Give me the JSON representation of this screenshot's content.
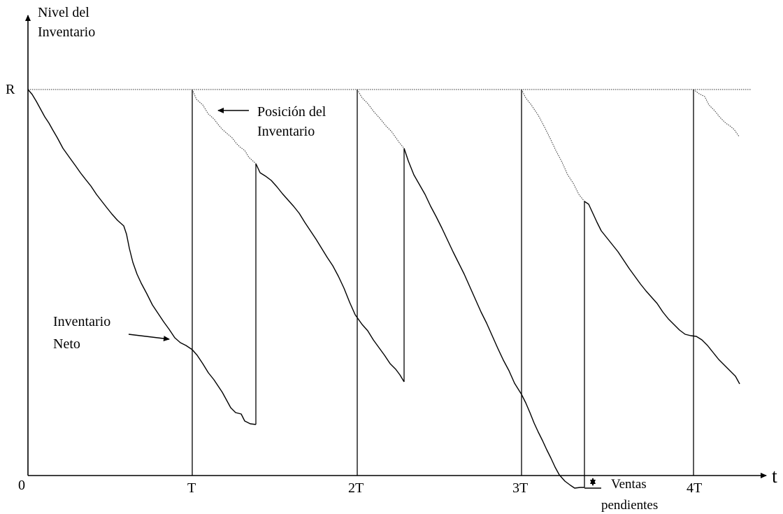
{
  "axes": {
    "y_label_line1": "Nivel del",
    "y_label_line2": "Inventario",
    "x_label": "t",
    "origin_label": "0",
    "r_label": "R",
    "ticks": [
      "T",
      "2T",
      "3T",
      "4T"
    ]
  },
  "annotations": {
    "position_line1": "Posición del",
    "position_line2": "Inventario",
    "net_line1": "Inventario",
    "net_line2": "Neto",
    "backorder_line1": "Ventas",
    "backorder_line2": "pendientes"
  },
  "colors": {
    "line": "#000000",
    "position_line": "#444444"
  }
}
